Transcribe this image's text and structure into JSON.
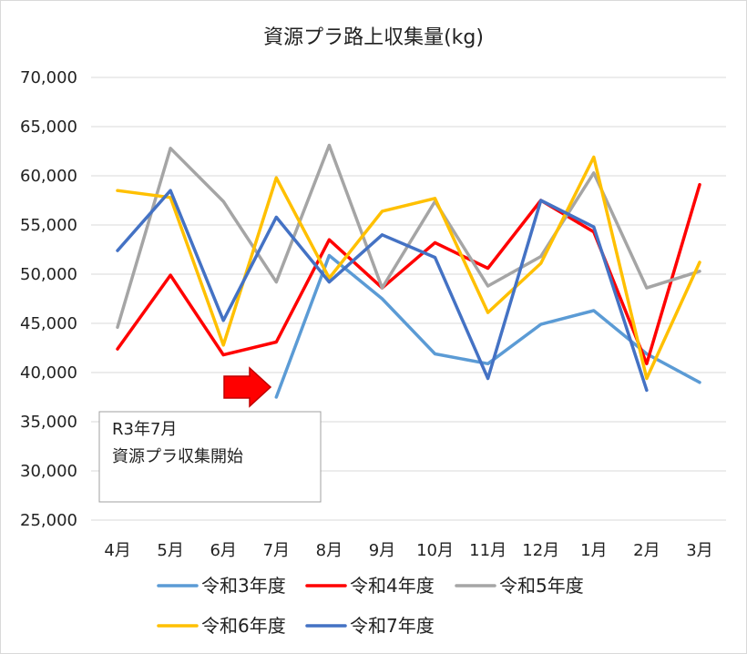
{
  "chart_data": {
    "type": "line",
    "title": "資源プラ路上収集量(kg)",
    "categories": [
      "4月",
      "5月",
      "6月",
      "7月",
      "8月",
      "9月",
      "10月",
      "11月",
      "12月",
      "1月",
      "2月",
      "3月"
    ],
    "ylim": [
      25000,
      70000
    ],
    "yticks": [
      25000,
      30000,
      35000,
      40000,
      45000,
      50000,
      55000,
      60000,
      65000,
      70000
    ],
    "ytick_labels": [
      "25,000",
      "30,000",
      "35,000",
      "40,000",
      "45,000",
      "50,000",
      "55,000",
      "60,000",
      "65,000",
      "70,000"
    ],
    "grid": true,
    "legend_position": "bottom",
    "series": [
      {
        "name": "令和3年度",
        "color": "#5b9bd5",
        "values": [
          null,
          null,
          null,
          37500,
          51900,
          47500,
          41900,
          40900,
          44900,
          46300,
          41900,
          39000
        ]
      },
      {
        "name": "令和4年度",
        "color": "#ff0000",
        "values": [
          42400,
          49900,
          41800,
          43100,
          53500,
          48600,
          53200,
          50600,
          57500,
          54300,
          40900,
          59100
        ]
      },
      {
        "name": "令和5年度",
        "color": "#a5a5a5",
        "values": [
          44600,
          62800,
          57400,
          49200,
          63100,
          48600,
          57400,
          48800,
          51800,
          60300,
          48600,
          50300
        ]
      },
      {
        "name": "令和6年度",
        "color": "#ffc000",
        "values": [
          58500,
          57800,
          42800,
          59800,
          49600,
          56400,
          57700,
          46100,
          51100,
          61900,
          39400,
          51200
        ]
      },
      {
        "name": "令和7年度",
        "color": "#4472c4",
        "values": [
          52400,
          58500,
          45300,
          55800,
          49200,
          54000,
          51700,
          39400,
          57500,
          54800,
          38200,
          null
        ]
      }
    ],
    "annotation": {
      "lines": [
        "R3年7月",
        "資源プラ収集開始"
      ],
      "arrow_color": "#ff0000",
      "arrow_outline": "#c00000"
    }
  }
}
